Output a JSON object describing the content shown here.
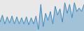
{
  "chart_data": {
    "type": "area",
    "values": [
      30,
      38,
      28,
      36,
      29,
      37,
      28,
      36,
      28,
      35,
      28,
      36,
      27,
      35,
      28,
      37,
      22,
      50,
      25,
      40,
      32,
      42,
      28,
      48,
      38,
      45,
      30,
      52,
      40,
      50,
      35,
      52,
      42,
      46,
      42,
      50
    ],
    "color": "#3a8bbf",
    "xlim": [
      0,
      35
    ],
    "ylim": [
      20,
      55
    ],
    "tick_labels": false,
    "grid": false
  }
}
